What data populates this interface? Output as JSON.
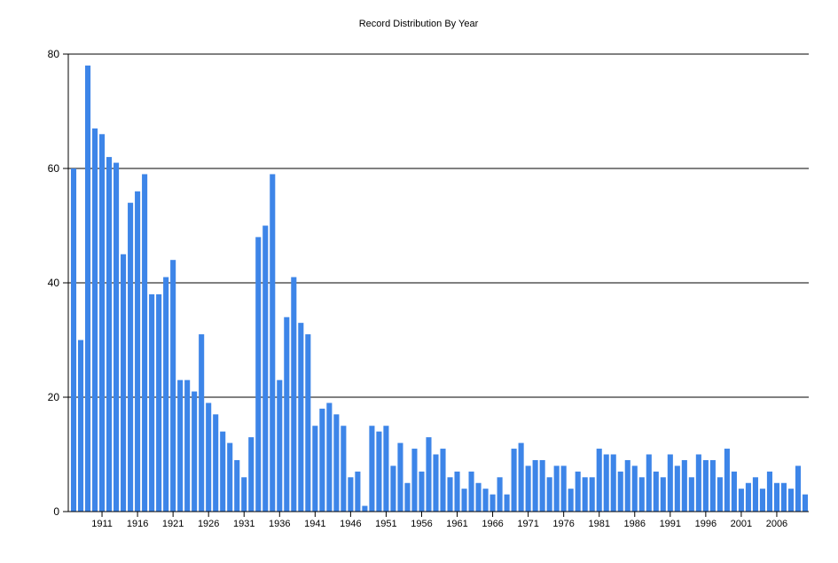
{
  "chart_data": {
    "type": "bar",
    "title": "Record Distribution By Year",
    "xlabel": "",
    "ylabel": "",
    "ylim": [
      0,
      80
    ],
    "yticks": [
      0,
      20,
      40,
      60,
      80
    ],
    "grid": "horizontal",
    "legend": "none",
    "bar_color": "#3D85E8",
    "x_start": 1907,
    "x_end": 2010,
    "xtick_labels": [
      "1911",
      "1916",
      "1921",
      "1926",
      "1931",
      "1936",
      "1941",
      "1946",
      "1951",
      "1956",
      "1961",
      "1966",
      "1971",
      "1976",
      "1981",
      "1986",
      "1991",
      "1996",
      "2001",
      "2006"
    ],
    "categories": [
      1907,
      1908,
      1909,
      1910,
      1911,
      1912,
      1913,
      1914,
      1915,
      1916,
      1917,
      1918,
      1919,
      1920,
      1921,
      1922,
      1923,
      1924,
      1925,
      1926,
      1927,
      1928,
      1929,
      1930,
      1931,
      1932,
      1933,
      1934,
      1935,
      1936,
      1937,
      1938,
      1939,
      1940,
      1941,
      1942,
      1943,
      1944,
      1945,
      1946,
      1947,
      1948,
      1949,
      1950,
      1951,
      1952,
      1953,
      1954,
      1955,
      1956,
      1957,
      1958,
      1959,
      1960,
      1961,
      1962,
      1963,
      1964,
      1965,
      1966,
      1967,
      1968,
      1969,
      1970,
      1971,
      1972,
      1973,
      1974,
      1975,
      1976,
      1977,
      1978,
      1979,
      1980,
      1981,
      1982,
      1983,
      1984,
      1985,
      1986,
      1987,
      1988,
      1989,
      1990,
      1991,
      1992,
      1993,
      1994,
      1995,
      1996,
      1997,
      1998,
      1999,
      2000,
      2001,
      2002,
      2003,
      2004,
      2005,
      2006,
      2007,
      2008,
      2009,
      2010
    ],
    "values": [
      60,
      30,
      78,
      67,
      66,
      62,
      61,
      45,
      54,
      56,
      59,
      38,
      38,
      41,
      44,
      23,
      23,
      21,
      31,
      19,
      17,
      14,
      12,
      9,
      6,
      13,
      48,
      50,
      59,
      23,
      34,
      41,
      33,
      31,
      15,
      18,
      19,
      17,
      15,
      6,
      7,
      1,
      15,
      14,
      15,
      8,
      12,
      5,
      11,
      7,
      13,
      10,
      11,
      6,
      7,
      4,
      7,
      5,
      4,
      3,
      6,
      3,
      11,
      12,
      8,
      9,
      9,
      6,
      8,
      8,
      4,
      7,
      6,
      6,
      11,
      10,
      10,
      7,
      9,
      8,
      6,
      10,
      7,
      6,
      10,
      8,
      9,
      6,
      10,
      9,
      9,
      6,
      11,
      7,
      4,
      5,
      6,
      4,
      7,
      5,
      5,
      4,
      8,
      3
    ]
  }
}
